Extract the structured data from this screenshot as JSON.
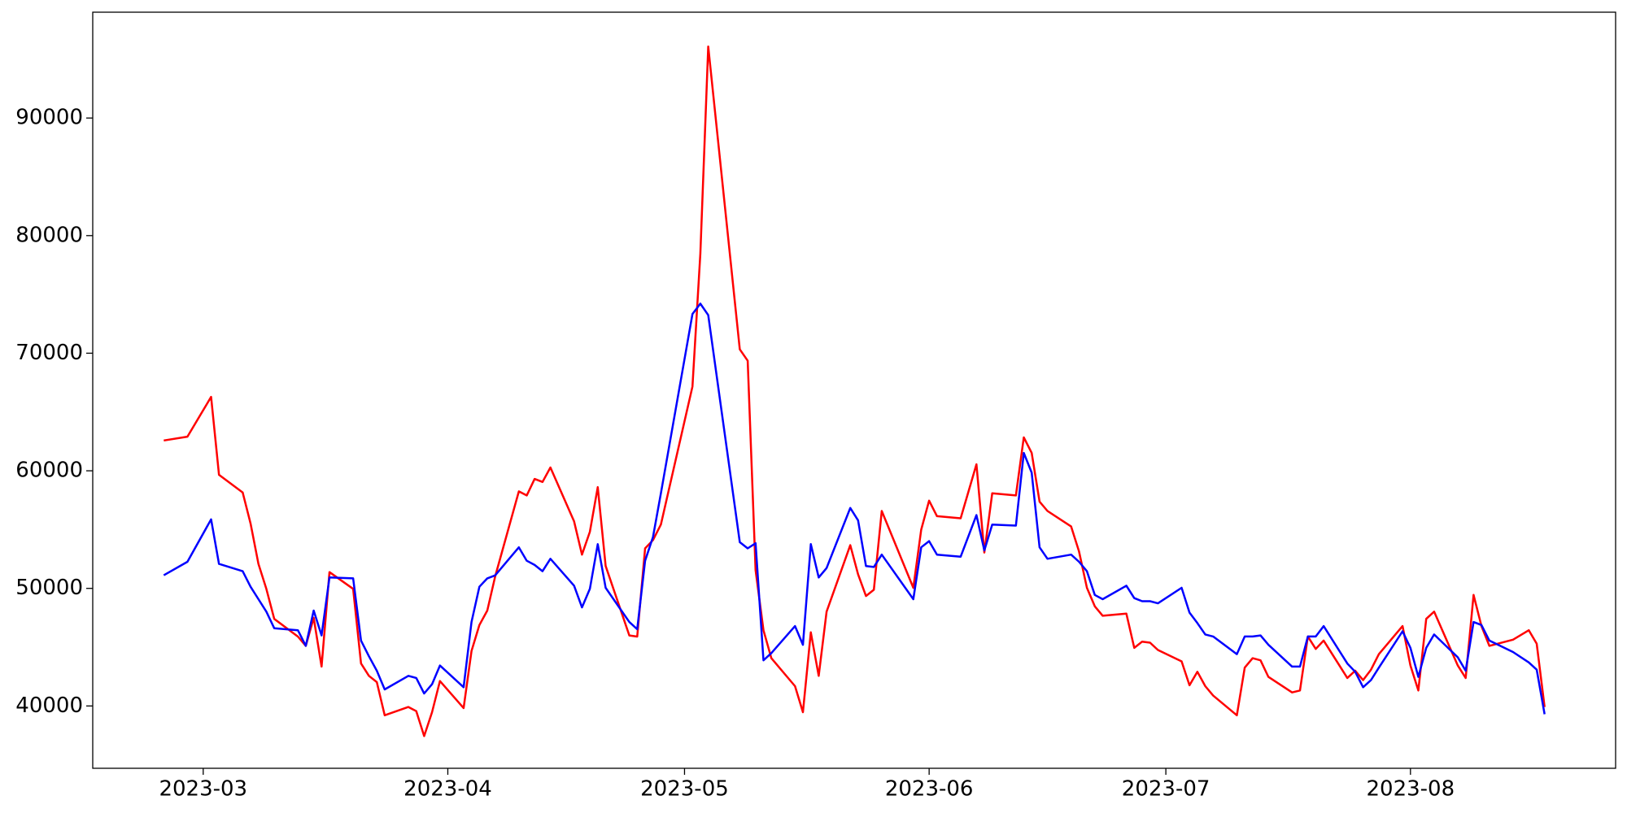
{
  "chart_data": {
    "type": "line",
    "x": [
      "2023-02-24",
      "2023-02-27",
      "2023-03-02",
      "2023-03-03",
      "2023-03-06",
      "2023-03-07",
      "2023-03-08",
      "2023-03-09",
      "2023-03-10",
      "2023-03-13",
      "2023-03-14",
      "2023-03-15",
      "2023-03-16",
      "2023-03-17",
      "2023-03-20",
      "2023-03-21",
      "2023-03-22",
      "2023-03-23",
      "2023-03-24",
      "2023-03-27",
      "2023-03-28",
      "2023-03-29",
      "2023-03-30",
      "2023-03-31",
      "2023-04-03",
      "2023-04-04",
      "2023-04-05",
      "2023-04-06",
      "2023-04-07",
      "2023-04-10",
      "2023-04-11",
      "2023-04-12",
      "2023-04-13",
      "2023-04-14",
      "2023-04-17",
      "2023-04-18",
      "2023-04-19",
      "2023-04-20",
      "2023-04-21",
      "2023-04-24",
      "2023-04-25",
      "2023-04-26",
      "2023-04-27",
      "2023-04-28",
      "2023-05-02",
      "2023-05-03",
      "2023-05-04",
      "2023-05-08",
      "2023-05-09",
      "2023-05-10",
      "2023-05-11",
      "2023-05-12",
      "2023-05-15",
      "2023-05-16",
      "2023-05-17",
      "2023-05-18",
      "2023-05-19",
      "2023-05-22",
      "2023-05-23",
      "2023-05-24",
      "2023-05-25",
      "2023-05-26",
      "2023-05-30",
      "2023-05-31",
      "2023-06-01",
      "2023-06-02",
      "2023-06-05",
      "2023-06-07",
      "2023-06-08",
      "2023-06-09",
      "2023-06-12",
      "2023-06-13",
      "2023-06-14",
      "2023-06-15",
      "2023-06-16",
      "2023-06-19",
      "2023-06-20",
      "2023-06-21",
      "2023-06-22",
      "2023-06-23",
      "2023-06-26",
      "2023-06-27",
      "2023-06-28",
      "2023-06-29",
      "2023-06-30",
      "2023-07-03",
      "2023-07-04",
      "2023-07-05",
      "2023-07-06",
      "2023-07-07",
      "2023-07-10",
      "2023-07-11",
      "2023-07-12",
      "2023-07-13",
      "2023-07-14",
      "2023-07-17",
      "2023-07-18",
      "2023-07-19",
      "2023-07-20",
      "2023-07-21",
      "2023-07-24",
      "2023-07-25",
      "2023-07-26",
      "2023-07-27",
      "2023-07-28",
      "2023-07-31",
      "2023-08-01",
      "2023-08-02",
      "2023-08-03",
      "2023-08-04",
      "2023-08-07",
      "2023-08-08",
      "2023-08-09",
      "2023-08-10",
      "2023-08-11",
      "2023-08-14",
      "2023-08-16",
      "2023-08-17",
      "2023-08-18"
    ],
    "series": [
      {
        "color": "#ff0000",
        "values": [
          62575,
          62900,
          66280,
          59660,
          58160,
          55520,
          52080,
          49960,
          47410,
          45900,
          45110,
          47500,
          43350,
          51380,
          49960,
          43610,
          42560,
          42030,
          39210,
          39910,
          39560,
          37440,
          39470,
          42120,
          39820,
          44670,
          46880,
          48110,
          51020,
          58250,
          57900,
          59310,
          59050,
          60280,
          55700,
          52870,
          54810,
          58610,
          51900,
          46000,
          45900,
          53400,
          54110,
          55430,
          67160,
          78450,
          96080,
          70330,
          69360,
          51550,
          46440,
          44060,
          41680,
          39470,
          46260,
          42560,
          48020,
          53670,
          51200,
          49350,
          49880,
          56580,
          50050,
          54990,
          57460,
          56140,
          55960,
          60550,
          53050,
          58080,
          57900,
          62840,
          61520,
          57370,
          56580,
          55260,
          53140,
          50050,
          48470,
          47670,
          47850,
          44940,
          45470,
          45380,
          44760,
          43790,
          41760,
          42910,
          41680,
          40880,
          39210,
          43260,
          44060,
          43880,
          42470,
          41150,
          41320,
          45910,
          44850,
          45560,
          42380,
          43000,
          42200,
          43090,
          44410,
          46790,
          43440,
          41320,
          47410,
          48020,
          43440,
          42380,
          49440,
          46790,
          45110,
          45640,
          46440,
          45290,
          39910
        ]
      },
      {
        "color": "#0000ff",
        "values": [
          51111,
          52260,
          55870,
          52080,
          51460,
          50140,
          49080,
          48020,
          46610,
          46440,
          45110,
          48110,
          46000,
          50930,
          50850,
          45560,
          44230,
          43000,
          41410,
          42560,
          42380,
          41060,
          41850,
          43440,
          41590,
          47140,
          50140,
          50850,
          51110,
          53490,
          52350,
          51990,
          51460,
          52520,
          50230,
          48380,
          49960,
          53760,
          50050,
          47140,
          46530,
          52350,
          54370,
          58080,
          73330,
          74210,
          73240,
          53930,
          53400,
          53840,
          43880,
          44500,
          46790,
          45200,
          53760,
          50930,
          51730,
          56840,
          55780,
          51900,
          51820,
          52870,
          49080,
          53490,
          54020,
          52870,
          52700,
          56230,
          53230,
          55430,
          55340,
          61520,
          59840,
          53490,
          52520,
          52870,
          52260,
          51460,
          49440,
          49080,
          50230,
          49170,
          48910,
          48910,
          48730,
          50050,
          47940,
          47050,
          46080,
          45910,
          44410,
          45910,
          45910,
          46000,
          45200,
          43350,
          43350,
          45910,
          45910,
          46790,
          43610,
          42910,
          41590,
          42200,
          43260,
          46350,
          44940,
          42470,
          44940,
          46080,
          44140,
          43000,
          47140,
          46880,
          45560,
          44590,
          43700,
          43090,
          39300
        ]
      }
    ],
    "xlim": [
      "2023-02-15",
      "2023-08-27"
    ],
    "xticks": [
      {
        "value": "2023-03-01",
        "label": "2023-03"
      },
      {
        "value": "2023-04-01",
        "label": "2023-04"
      },
      {
        "value": "2023-05-01",
        "label": "2023-05"
      },
      {
        "value": "2023-06-01",
        "label": "2023-06"
      },
      {
        "value": "2023-07-01",
        "label": "2023-07"
      },
      {
        "value": "2023-08-01",
        "label": "2023-08"
      }
    ],
    "ylim": [
      34700,
      99000
    ],
    "yticks": [
      40000,
      50000,
      60000,
      70000,
      80000,
      90000
    ]
  }
}
